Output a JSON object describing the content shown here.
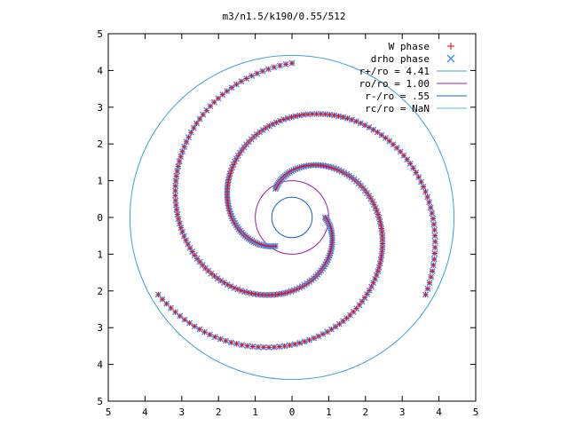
{
  "chart_data": {
    "type": "scatter",
    "title": "m3/n1.5/k190/0.55/512",
    "xlabel": "",
    "ylabel": "",
    "xlim": [
      -5,
      5
    ],
    "ylim": [
      -5,
      5
    ],
    "grid": false,
    "legend_position": "top-right",
    "x_tick_labels": [
      "5",
      "4",
      "3",
      "2",
      "1",
      "0",
      "1",
      "2",
      "3",
      "4",
      "5"
    ],
    "y_tick_labels": [
      "5",
      "4",
      "3",
      "2",
      "1",
      "0",
      "1",
      "2",
      "3",
      "4",
      "5"
    ],
    "x_tick_values": [
      -5,
      -4,
      -3,
      -2,
      -1,
      0,
      1,
      2,
      3,
      4,
      5
    ],
    "y_tick_values": [
      5,
      4,
      3,
      2,
      1,
      0,
      -1,
      -2,
      -3,
      -4,
      -5
    ],
    "legend": [
      {
        "label": "W phase",
        "marker": "+",
        "color": "#ff0000"
      },
      {
        "label": "drho phase",
        "marker": "x",
        "color": "#3d8eef"
      },
      {
        "label": "r+/ro = 4.41",
        "marker": "line",
        "color": "#3aa1d9"
      },
      {
        "label": "ro/ro = 1.00",
        "marker": "line",
        "color": "#9b1fae"
      },
      {
        "label": "r-/ro = .55",
        "marker": "line",
        "color": "#1a5fcc"
      },
      {
        "label": "rc/ro = NaN",
        "marker": "line",
        "color": "#4fc3dd"
      }
    ],
    "circles": [
      {
        "name": "r+/ro = 4.41",
        "r": 4.41,
        "color": "#3aa1d9"
      },
      {
        "name": "ro/ro = 1.00",
        "r": 1.0,
        "color": "#9b1fae"
      },
      {
        "name": "r-/ro = .55",
        "r": 0.55,
        "color": "#1a5fcc"
      }
    ],
    "spiral_arms": [
      {
        "arm": 1,
        "r_inner": 0.9,
        "r_outer": 4.2,
        "theta_start_deg": 0,
        "winding_deg": 270
      },
      {
        "arm": 2,
        "r_inner": 0.9,
        "r_outer": 4.2,
        "theta_start_deg": 120,
        "winding_deg": 270
      },
      {
        "arm": 3,
        "r_inner": 0.9,
        "r_outer": 4.2,
        "theta_start_deg": 240,
        "winding_deg": 270
      }
    ]
  }
}
